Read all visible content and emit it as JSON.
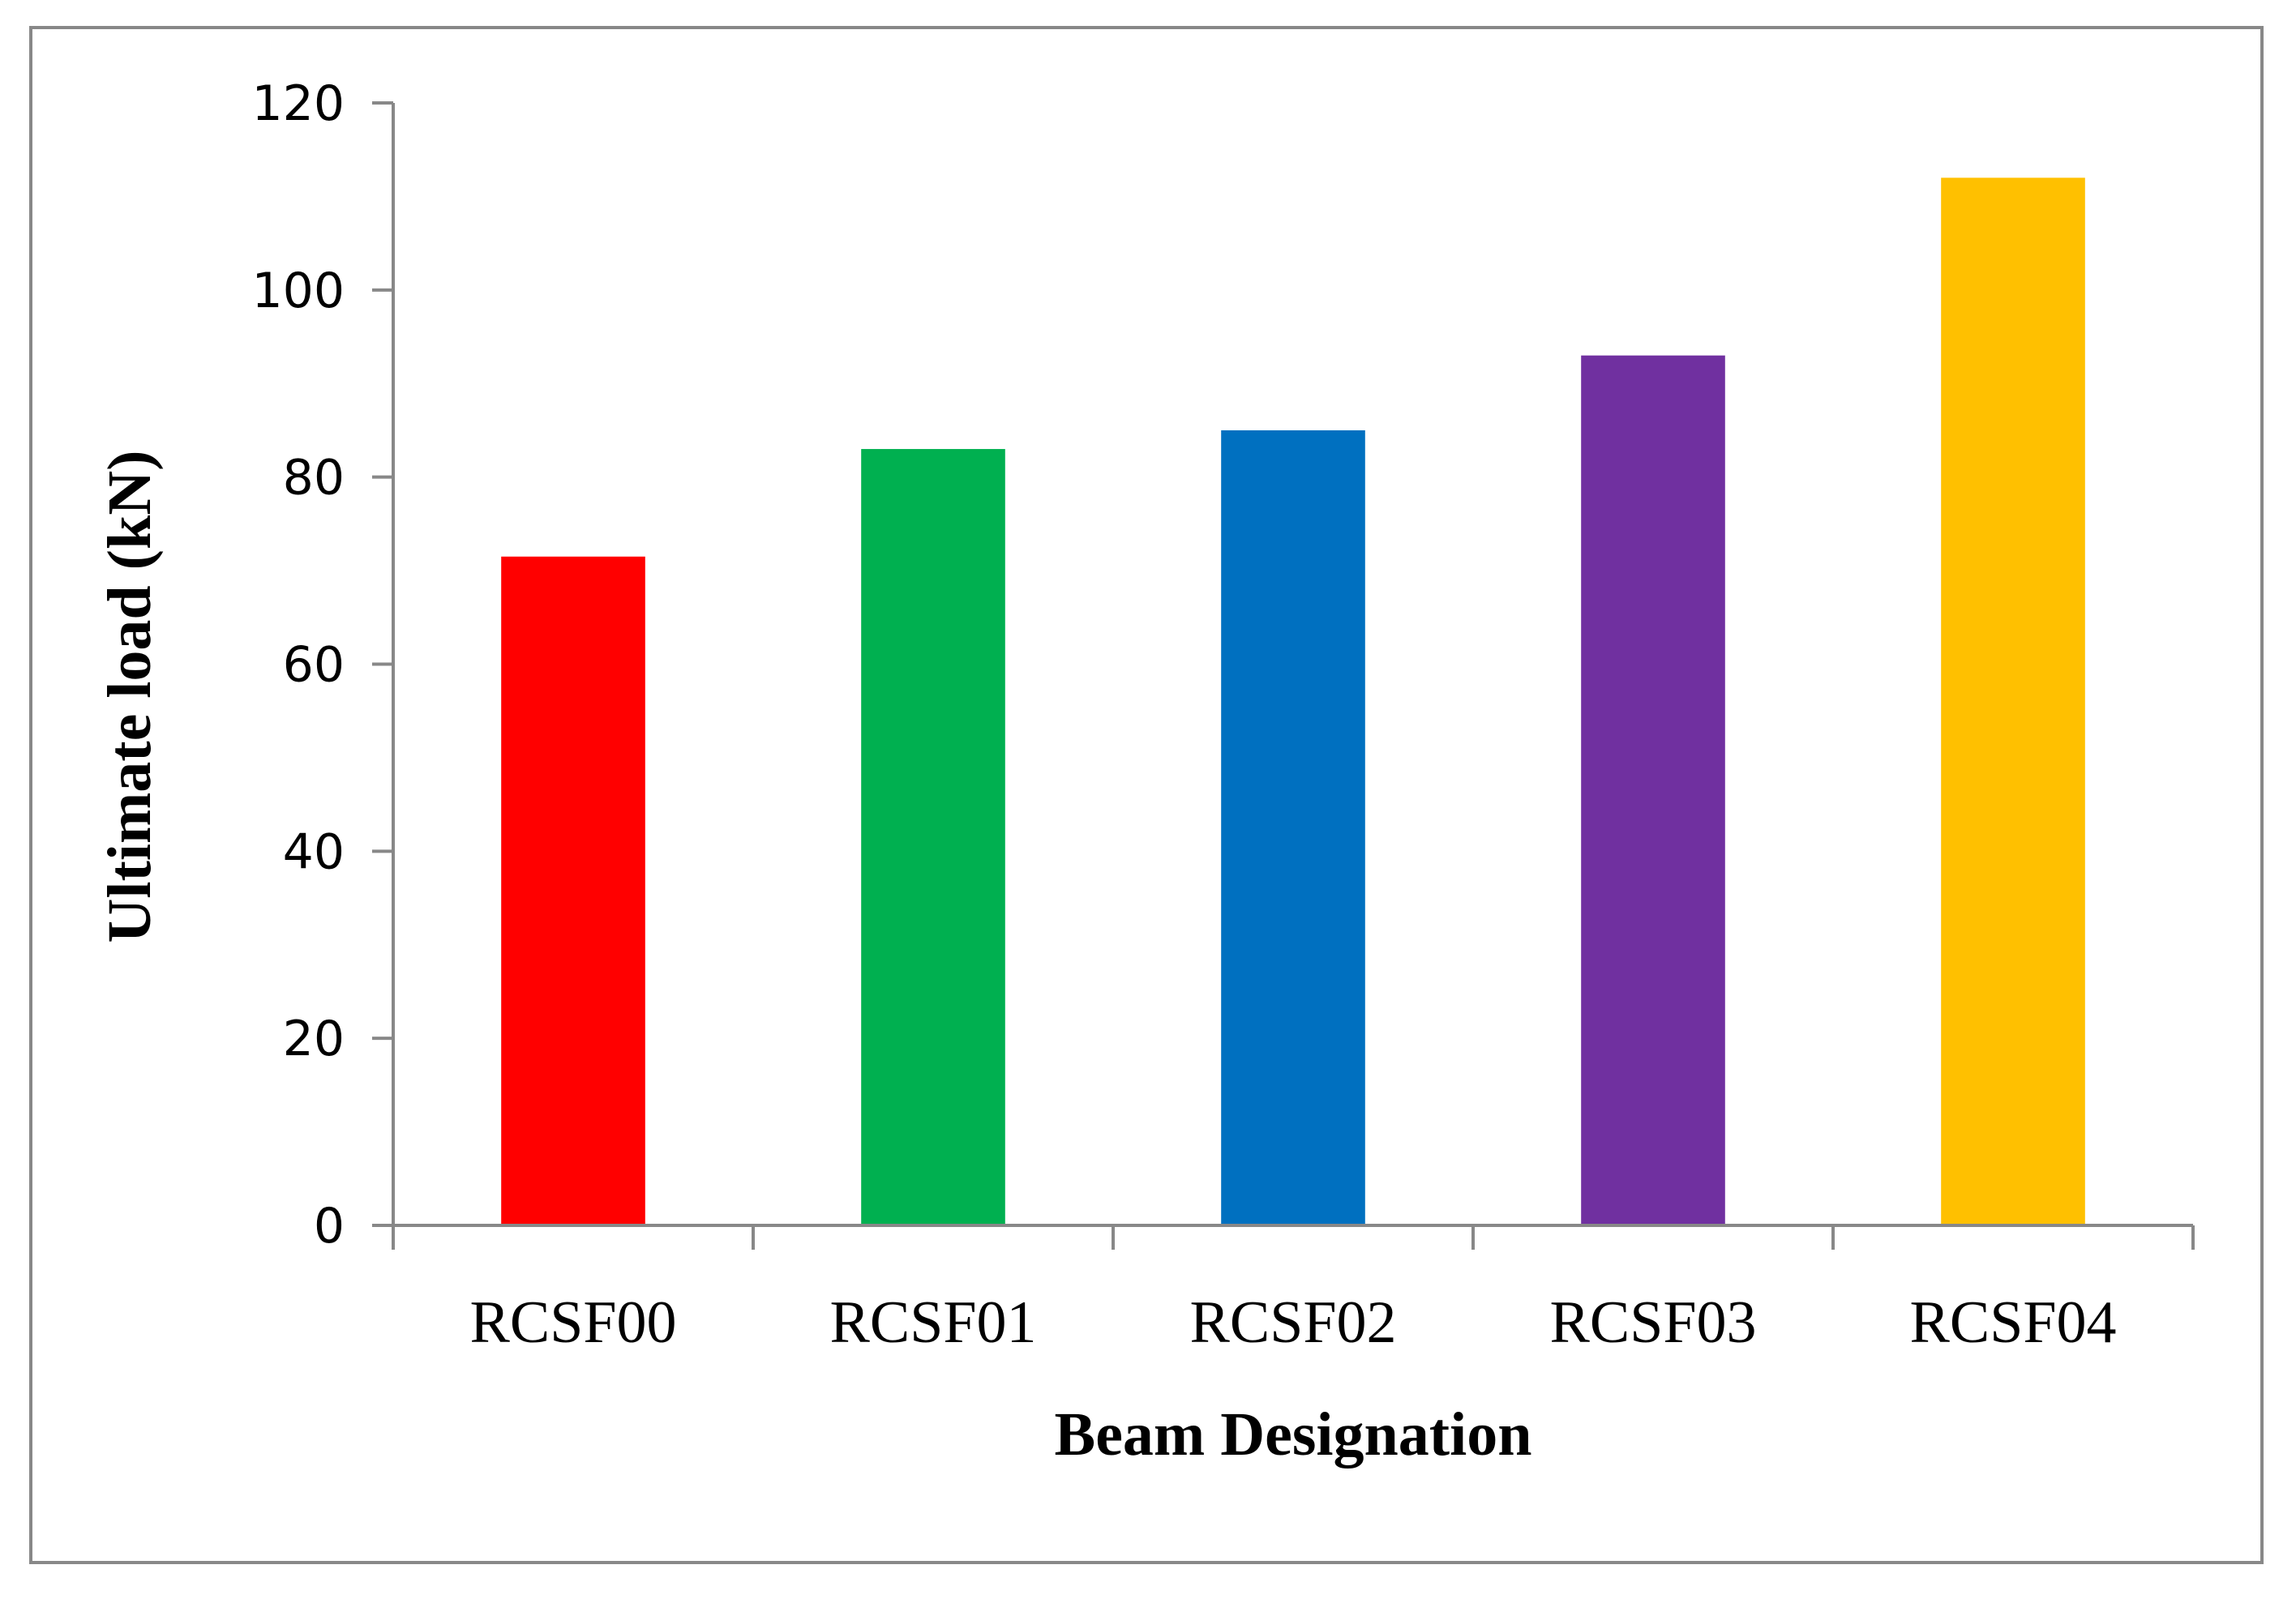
{
  "chart_data": {
    "type": "bar",
    "title": "",
    "xlabel": "Beam Designation",
    "ylabel": "Ultimate load (kN)",
    "categories": [
      "RCSF00",
      "RCSF01",
      "RCSF02",
      "RCSF03",
      "RCSF04"
    ],
    "values": [
      71.5,
      83,
      85,
      93,
      112
    ],
    "colors": [
      "#FF0000",
      "#00B050",
      "#0070C0",
      "#7030A0",
      "#FFC000"
    ],
    "ylim": [
      0,
      120
    ],
    "yticks": [
      "0",
      "20",
      "40",
      "60",
      "80",
      "100",
      "120"
    ],
    "grid": false,
    "legend": "none"
  }
}
